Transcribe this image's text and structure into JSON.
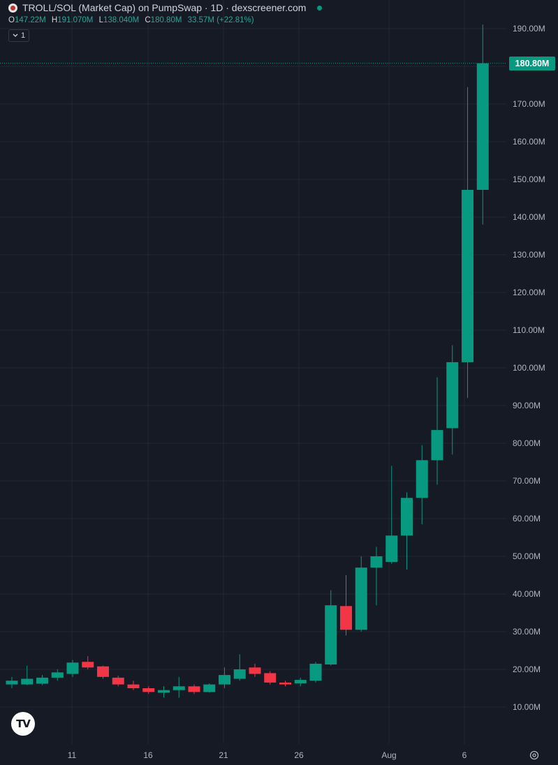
{
  "header": {
    "title": "TROLL/SOL (Market Cap) on PumpSwap · 1D · dexscreener.com",
    "ohlc": {
      "o_label": "O",
      "o": "147.22M",
      "h_label": "H",
      "h": "191.070M",
      "l_label": "L",
      "l": "138.040M",
      "c_label": "C",
      "c": "180.80M",
      "change": "33.57M (+22.81%)"
    },
    "collapse_count": "1"
  },
  "last_price_label": "180.80M",
  "price_axis_labels": [
    "190.00M",
    "170.00M",
    "160.00M",
    "150.00M",
    "140.00M",
    "130.00M",
    "120.00M",
    "110.00M",
    "100.00M",
    "90.00M",
    "80.00M",
    "70.00M",
    "60.00M",
    "50.00M",
    "40.00M",
    "30.00M",
    "20.00M",
    "10.00M"
  ],
  "time_axis_labels": [
    "11",
    "16",
    "21",
    "26",
    "Aug",
    "6"
  ],
  "logo_text": "TV",
  "colors": {
    "background": "#161a25",
    "up": "#089981",
    "down": "#f23645",
    "grid": "#232734",
    "axis_text": "#b2b5be"
  },
  "icons": [
    "troll-token-icon",
    "live-status-dot",
    "chevron-down-icon",
    "tradingview-logo",
    "gear-icon"
  ],
  "chart_data": {
    "type": "candlestick",
    "ylim": [
      0,
      200
    ],
    "unit": "M",
    "candles": [
      {
        "o": 16.0,
        "h": 18.0,
        "l": 15.0,
        "c": 17.0
      },
      {
        "o": 16.0,
        "h": 21.0,
        "l": 15.8,
        "c": 17.5
      },
      {
        "o": 16.2,
        "h": 18.5,
        "l": 15.8,
        "c": 17.8
      },
      {
        "o": 17.8,
        "h": 20.0,
        "l": 17.0,
        "c": 19.2
      },
      {
        "o": 18.8,
        "h": 22.5,
        "l": 18.0,
        "c": 21.8
      },
      {
        "o": 22.0,
        "h": 23.5,
        "l": 20.0,
        "c": 20.5
      },
      {
        "o": 20.8,
        "h": 21.0,
        "l": 17.5,
        "c": 18.0
      },
      {
        "o": 17.8,
        "h": 18.3,
        "l": 15.5,
        "c": 16.0
      },
      {
        "o": 16.0,
        "h": 17.0,
        "l": 14.5,
        "c": 15.0
      },
      {
        "o": 15.0,
        "h": 15.5,
        "l": 13.5,
        "c": 14.0
      },
      {
        "o": 13.8,
        "h": 15.5,
        "l": 12.5,
        "c": 14.5
      },
      {
        "o": 14.5,
        "h": 18.0,
        "l": 12.5,
        "c": 15.5
      },
      {
        "o": 15.5,
        "h": 16.0,
        "l": 13.5,
        "c": 14.0
      },
      {
        "o": 14.0,
        "h": 16.3,
        "l": 13.8,
        "c": 16.0
      },
      {
        "o": 16.0,
        "h": 20.5,
        "l": 15.0,
        "c": 18.5
      },
      {
        "o": 17.5,
        "h": 24.0,
        "l": 17.0,
        "c": 20.0
      },
      {
        "o": 20.5,
        "h": 21.5,
        "l": 18.0,
        "c": 18.8
      },
      {
        "o": 19.0,
        "h": 19.5,
        "l": 16.0,
        "c": 16.5
      },
      {
        "o": 16.5,
        "h": 17.0,
        "l": 15.5,
        "c": 16.0
      },
      {
        "o": 16.3,
        "h": 17.8,
        "l": 15.5,
        "c": 17.2
      },
      {
        "o": 17.0,
        "h": 22.0,
        "l": 16.5,
        "c": 21.5
      },
      {
        "o": 21.3,
        "h": 41.0,
        "l": 21.0,
        "c": 37.0
      },
      {
        "o": 36.8,
        "h": 45.0,
        "l": 29.0,
        "c": 30.5
      },
      {
        "o": 30.5,
        "h": 50.0,
        "l": 30.0,
        "c": 47.0
      },
      {
        "o": 47.0,
        "h": 52.5,
        "l": 37.0,
        "c": 50.0
      },
      {
        "o": 48.5,
        "h": 74.0,
        "l": 48.0,
        "c": 55.5
      },
      {
        "o": 55.5,
        "h": 67.0,
        "l": 46.5,
        "c": 65.5
      },
      {
        "o": 65.5,
        "h": 79.5,
        "l": 58.5,
        "c": 75.5
      },
      {
        "o": 75.5,
        "h": 97.5,
        "l": 69.0,
        "c": 83.5
      },
      {
        "o": 84.0,
        "h": 106.0,
        "l": 77.0,
        "c": 101.5
      },
      {
        "o": 101.5,
        "h": 174.5,
        "l": 92.0,
        "c": 147.22
      },
      {
        "o": 147.22,
        "h": 191.07,
        "l": 138.04,
        "c": 180.8
      }
    ]
  }
}
